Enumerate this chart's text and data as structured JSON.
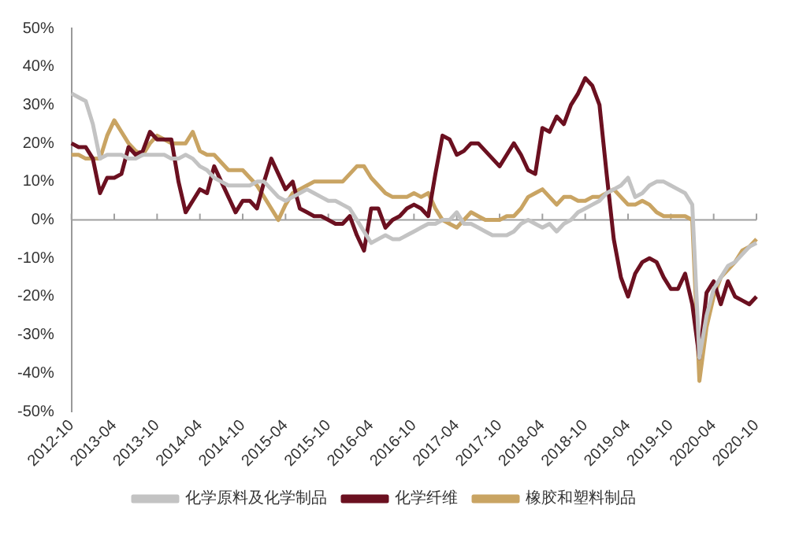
{
  "chart_data": {
    "type": "line",
    "categories": [
      "2012-10",
      null,
      null,
      null,
      null,
      null,
      "2013-04",
      null,
      null,
      null,
      null,
      null,
      "2013-10",
      null,
      null,
      null,
      null,
      null,
      "2014-04",
      null,
      null,
      null,
      null,
      null,
      "2014-10",
      null,
      null,
      null,
      null,
      null,
      "2015-04",
      null,
      null,
      null,
      null,
      null,
      "2015-10",
      null,
      null,
      null,
      null,
      null,
      "2016-04",
      null,
      null,
      null,
      null,
      null,
      "2016-10",
      null,
      null,
      null,
      null,
      null,
      "2017-04",
      null,
      null,
      null,
      null,
      null,
      "2017-10",
      null,
      null,
      null,
      null,
      null,
      "2018-04",
      null,
      null,
      null,
      null,
      null,
      "2018-10",
      null,
      null,
      null,
      null,
      null,
      "2019-04",
      null,
      null,
      null,
      null,
      null,
      "2019-10",
      null,
      null,
      null,
      null,
      null,
      "2020-04",
      null,
      null,
      null,
      null,
      null,
      "2020-10"
    ],
    "series": [
      {
        "name": "化学原料及化学制品",
        "color": "#c3c3c3",
        "values": [
          33,
          32,
          31,
          25,
          16,
          17,
          17,
          17,
          16,
          16,
          17,
          17,
          17,
          17,
          16,
          16,
          17,
          16,
          14,
          13,
          11,
          10,
          9,
          9,
          9,
          9,
          10,
          10,
          8,
          6,
          5,
          6,
          7,
          8,
          7,
          6,
          5,
          5,
          4,
          3,
          0,
          -3,
          -6,
          -5,
          -4,
          -5,
          -5,
          -4,
          -3,
          -2,
          -1,
          -1,
          0,
          0,
          2,
          -1,
          -1,
          -2,
          -3,
          -4,
          -4,
          -4,
          -3,
          -1,
          0,
          -1,
          -2,
          -1,
          -3,
          -1,
          0,
          2,
          3,
          4,
          5,
          7,
          8,
          9,
          11,
          6,
          7,
          9,
          10,
          10,
          9,
          8,
          7,
          4,
          -36,
          -25,
          -18,
          -15,
          -12,
          -11,
          -9,
          -7,
          -6
        ]
      },
      {
        "name": "化学纤维",
        "color": "#6b1020",
        "values": [
          20,
          19,
          19,
          16,
          7,
          11,
          11,
          12,
          19,
          17,
          18,
          23,
          21,
          21,
          21,
          10,
          2,
          5,
          8,
          7,
          14,
          10,
          6,
          2,
          5,
          5,
          3,
          10,
          16,
          12,
          8,
          10,
          3,
          2,
          1,
          1,
          0,
          -1,
          -1,
          1,
          -4,
          -8,
          3,
          3,
          -2,
          0,
          1,
          3,
          4,
          3,
          1,
          12,
          22,
          21,
          17,
          18,
          20,
          20,
          18,
          16,
          14,
          17,
          20,
          17,
          13,
          12,
          24,
          23,
          27,
          25,
          30,
          33,
          37,
          35,
          30,
          12,
          -5,
          -15,
          -20,
          -14,
          -11,
          -10,
          -11,
          -15,
          -18,
          -18,
          -14,
          -22,
          -36,
          -19,
          -16,
          -22,
          -16,
          -20,
          -21,
          -22,
          -20
        ]
      },
      {
        "name": "橡胶和塑料制品",
        "color": "#c9a463",
        "values": [
          17,
          17,
          16,
          16,
          16,
          22,
          26,
          23,
          20,
          18,
          17,
          20,
          22,
          21,
          20,
          20,
          20,
          23,
          18,
          17,
          17,
          15,
          13,
          13,
          13,
          11,
          9,
          6,
          3,
          0,
          4,
          7,
          8,
          9,
          10,
          10,
          10,
          10,
          10,
          12,
          14,
          14,
          11,
          9,
          7,
          6,
          6,
          6,
          7,
          6,
          7,
          3,
          0,
          -1,
          -2,
          0,
          2,
          1,
          0,
          0,
          0,
          1,
          1,
          3,
          6,
          7,
          8,
          6,
          4,
          6,
          6,
          5,
          5,
          6,
          6,
          7,
          8,
          6,
          4,
          4,
          5,
          4,
          2,
          1,
          1,
          1,
          1,
          0,
          -42,
          -28,
          -20,
          -15,
          -13,
          -11,
          -8,
          -7,
          -5
        ]
      }
    ],
    "ylim": [
      -50,
      50
    ],
    "yticks": [
      {
        "value": -50,
        "label": "-50%"
      },
      {
        "value": -40,
        "label": "-40%"
      },
      {
        "value": -30,
        "label": "-30%"
      },
      {
        "value": -20,
        "label": "-20%"
      },
      {
        "value": -10,
        "label": "-10%"
      },
      {
        "value": 0,
        "label": "0%"
      },
      {
        "value": 10,
        "label": "10%"
      },
      {
        "value": 20,
        "label": "20%"
      },
      {
        "value": 30,
        "label": "30%"
      },
      {
        "value": 40,
        "label": "40%"
      },
      {
        "value": 50,
        "label": "50%"
      }
    ],
    "ref_lines": [
      {
        "axis": "y",
        "value": 0,
        "color": "#a0a0a0"
      }
    ],
    "grid": false,
    "legend": "bottom",
    "marker": "none",
    "line_style": "solid"
  }
}
